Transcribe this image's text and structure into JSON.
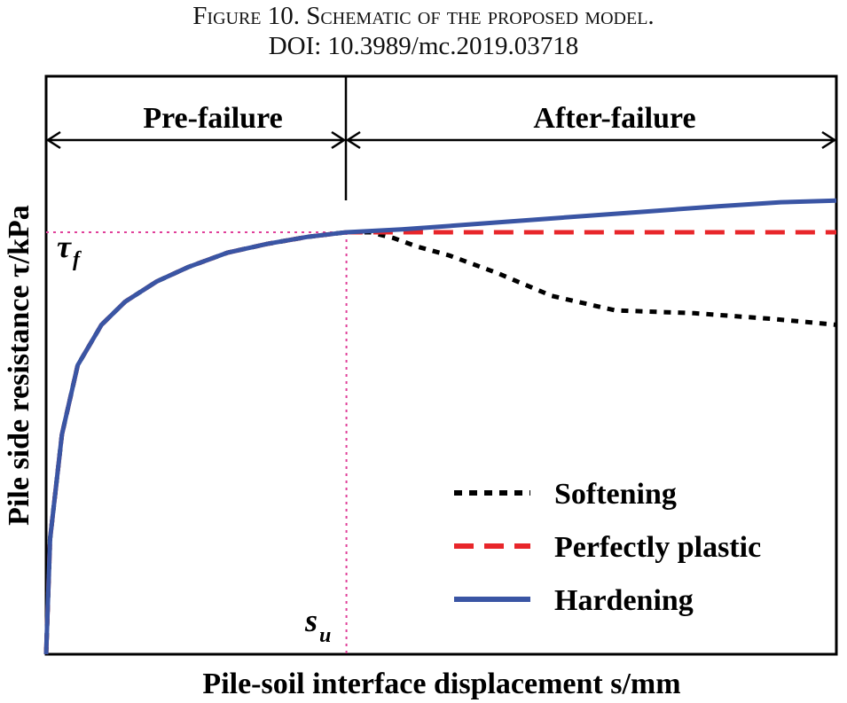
{
  "figure": {
    "caption": "Figure 10.    Schematic of the proposed model.",
    "doi": "DOI: 10.3989/mc.2019.03718"
  },
  "chart_data": {
    "type": "line",
    "title": "",
    "xlabel": "Pile-soil interface displacement s/mm",
    "ylabel": "Pile side resistance τ/kPa",
    "xlim": [
      0,
      1
    ],
    "ylim": [
      0,
      1
    ],
    "grid": false,
    "legend_position": "bottom-right",
    "regions": [
      "Pre-failure",
      "After-failure"
    ],
    "annotations": {
      "tau_f": "τ",
      "tau_f_sub": "f",
      "s_u": "s",
      "s_u_sub": "u"
    },
    "s_u": 0.38,
    "tau_f": 0.73,
    "series": [
      {
        "name": "Softening",
        "color": "#000000",
        "style": "dotted",
        "x": [
          0,
          0.005,
          0.02,
          0.04,
          0.07,
          0.1,
          0.14,
          0.18,
          0.23,
          0.28,
          0.33,
          0.38,
          0.41,
          0.44,
          0.47,
          0.51,
          0.57,
          0.64,
          0.72,
          0.82,
          0.92,
          1.0
        ],
        "y": [
          0,
          0.2,
          0.38,
          0.5,
          0.57,
          0.61,
          0.645,
          0.67,
          0.695,
          0.71,
          0.722,
          0.73,
          0.73,
          0.72,
          0.705,
          0.69,
          0.66,
          0.62,
          0.595,
          0.59,
          0.58,
          0.57
        ]
      },
      {
        "name": "Perfectly plastic",
        "color": "#e8262a",
        "style": "dashed",
        "x": [
          0,
          0.005,
          0.02,
          0.04,
          0.07,
          0.1,
          0.14,
          0.18,
          0.23,
          0.28,
          0.33,
          0.38,
          0.5,
          0.7,
          1.0
        ],
        "y": [
          0,
          0.2,
          0.38,
          0.5,
          0.57,
          0.61,
          0.645,
          0.67,
          0.695,
          0.71,
          0.722,
          0.73,
          0.73,
          0.73,
          0.73
        ]
      },
      {
        "name": "Hardening",
        "color": "#3a55a4",
        "style": "solid",
        "x": [
          0,
          0.005,
          0.02,
          0.04,
          0.07,
          0.1,
          0.14,
          0.18,
          0.23,
          0.28,
          0.33,
          0.38,
          0.45,
          0.55,
          0.65,
          0.75,
          0.85,
          0.93,
          1.0
        ],
        "y": [
          0,
          0.2,
          0.38,
          0.5,
          0.57,
          0.61,
          0.645,
          0.67,
          0.695,
          0.71,
          0.722,
          0.73,
          0.735,
          0.745,
          0.755,
          0.765,
          0.775,
          0.782,
          0.785
        ]
      }
    ]
  }
}
